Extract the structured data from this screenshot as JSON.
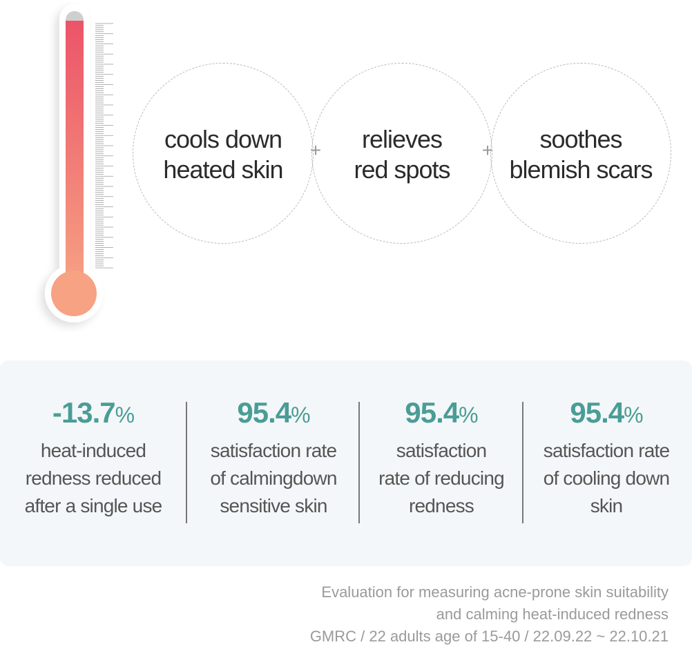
{
  "benefits": [
    {
      "line1": "cools down",
      "line2": "heated skin"
    },
    {
      "line1": "relieves",
      "line2": "red spots"
    },
    {
      "line1": "soothes",
      "line2": "blemish scars"
    }
  ],
  "plus_symbol": "+",
  "stats": [
    {
      "value": "-13.7",
      "unit": "%",
      "lines": [
        "heat-induced",
        "redness reduced",
        "after a single use"
      ]
    },
    {
      "value": "95.4",
      "unit": "%",
      "lines": [
        "satisfaction rate",
        "of calmingdown",
        "sensitive skin"
      ]
    },
    {
      "value": "95.4",
      "unit": "%",
      "lines": [
        "satisfaction",
        "rate of reducing",
        "redness"
      ]
    },
    {
      "value": "95.4",
      "unit": "%",
      "lines": [
        "satisfaction rate",
        "of cooling down",
        "skin"
      ]
    }
  ],
  "footnote": [
    "Evaluation for measuring acne-prone skin suitability",
    "and calming heat-induced redness",
    "GMRC / 22 adults age of 15-40 / 22.09.22 ~ 22.10.21"
  ],
  "colors": {
    "accent": "#4a9d96",
    "thermo_top": "#ec5468",
    "thermo_bottom": "#f6a283",
    "panel": "#f4f7f9"
  }
}
